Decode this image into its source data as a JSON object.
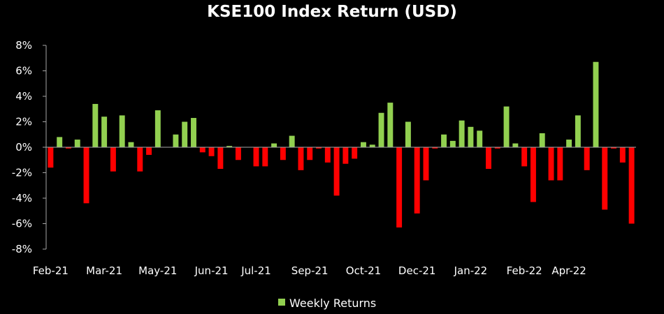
{
  "chart_data": {
    "type": "bar",
    "title": "KSE100 Index Return (USD)",
    "xlabel": "",
    "ylabel": "",
    "ylim": [
      -0.08,
      0.08
    ],
    "y_ticks": [
      0.08,
      0.06,
      0.04,
      0.02,
      0.0,
      -0.02,
      -0.04,
      -0.06,
      -0.08
    ],
    "y_tick_labels": [
      "8%",
      "6%",
      "4%",
      "2%",
      "0%",
      "-2%",
      "-4%",
      "-6%",
      "-8%"
    ],
    "x_tick_labels": [
      "Feb-21",
      "Mar-21",
      "May-21",
      "Jun-21",
      "Jul-21",
      "Sep-21",
      "Oct-21",
      "Dec-21",
      "Jan-22",
      "Feb-22",
      "Apr-22"
    ],
    "x_tick_positions": [
      0,
      6,
      12,
      18,
      23,
      29,
      35,
      41,
      47,
      53,
      58
    ],
    "grid": false,
    "legend": {
      "position": "bottom",
      "label": "Weekly Returns"
    },
    "colors": {
      "positive": "#92d050",
      "negative": "#ff0000",
      "background": "#000000",
      "axis": "#a6a6a6",
      "text": "#ffffff"
    },
    "series": [
      {
        "name": "Weekly Returns",
        "values": [
          -0.016,
          0.008,
          -0.001,
          0.006,
          -0.044,
          0.034,
          0.024,
          -0.019,
          0.025,
          0.004,
          -0.019,
          -0.006,
          0.029,
          0.0,
          0.01,
          0.02,
          0.023,
          -0.004,
          -0.007,
          -0.017,
          0.001,
          -0.01,
          0.0,
          -0.015,
          -0.015,
          0.003,
          -0.01,
          0.009,
          -0.018,
          -0.01,
          -0.001,
          -0.012,
          -0.038,
          -0.013,
          -0.009,
          0.004,
          0.002,
          0.027,
          0.035,
          -0.063,
          0.02,
          -0.052,
          -0.026,
          -0.001,
          0.01,
          0.005,
          0.021,
          0.016,
          0.013,
          -0.017,
          -0.001,
          0.032,
          0.003,
          -0.015,
          -0.043,
          0.011,
          -0.026,
          -0.026,
          0.006,
          0.025,
          -0.018,
          0.067,
          -0.049,
          -0.001,
          -0.012,
          -0.06
        ]
      }
    ]
  }
}
